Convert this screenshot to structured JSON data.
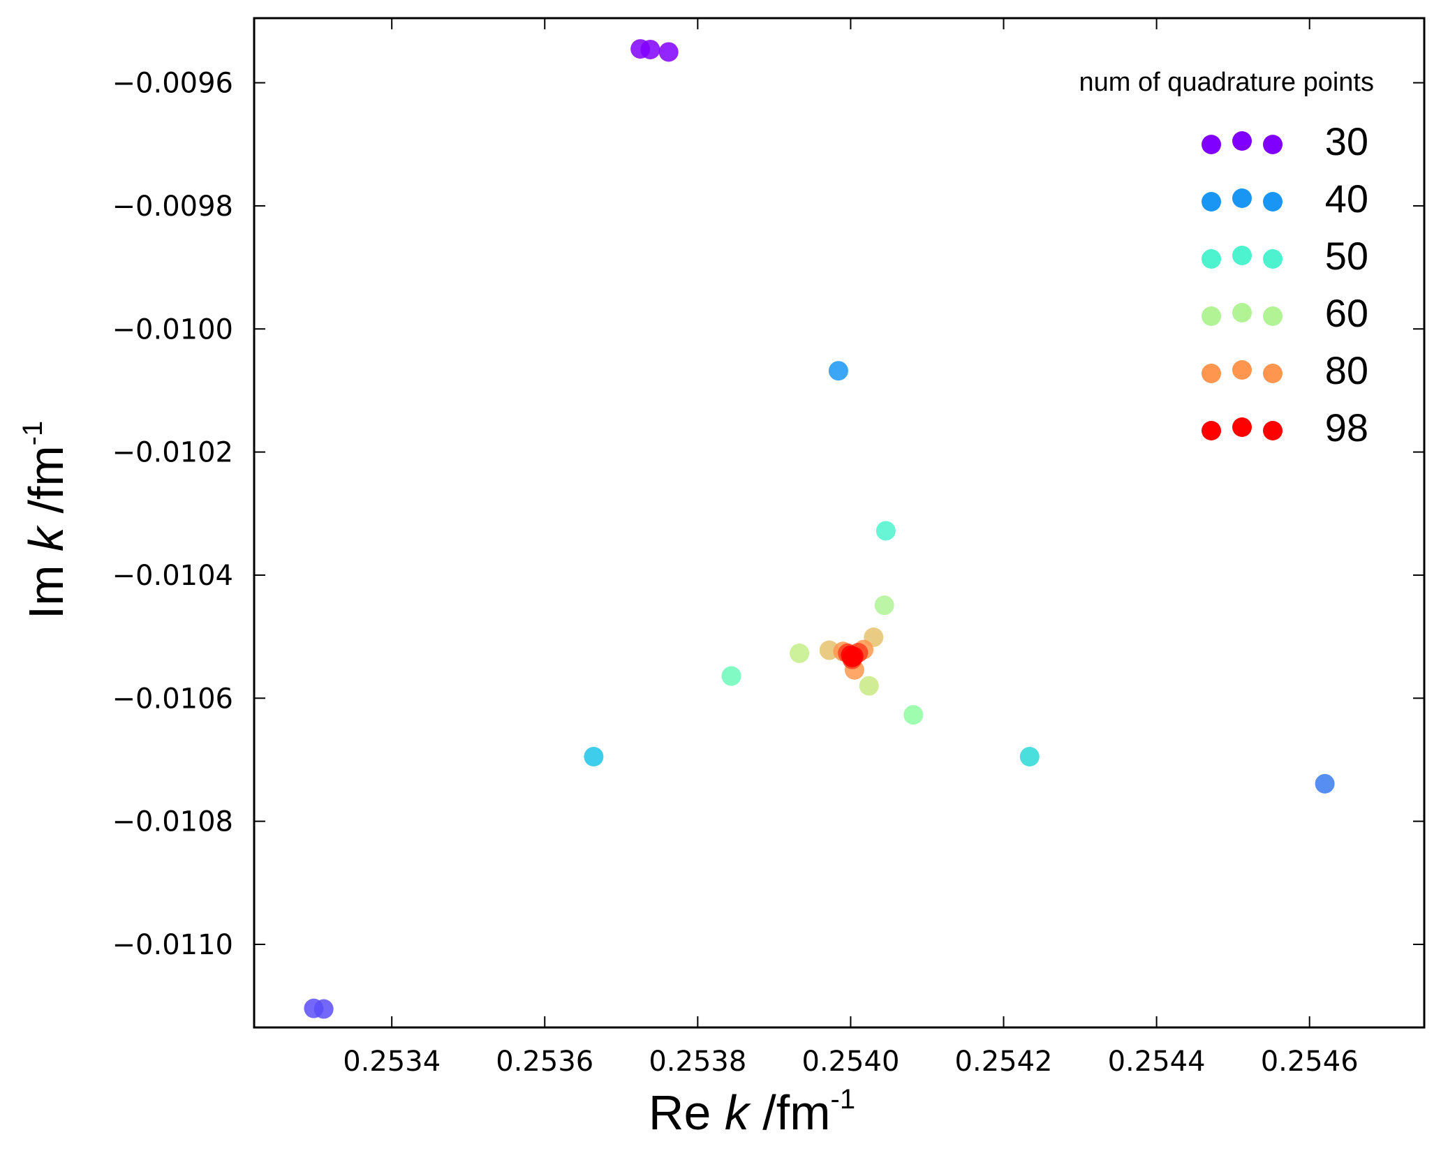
{
  "chart_data": {
    "type": "scatter",
    "xlabel": {
      "prefix": "Re ",
      "var": "k",
      "unit": " /fm",
      "sup": "-1"
    },
    "ylabel": {
      "prefix": "Im ",
      "var": "k",
      "unit": " /fm",
      "sup": "-1"
    },
    "xlim": [
      0.25322,
      0.25475
    ],
    "ylim": [
      -0.011135,
      -0.009495
    ],
    "xticks": [
      0.2534,
      0.2536,
      0.2538,
      0.254,
      0.2542,
      0.2544,
      0.2546
    ],
    "xtick_labels": [
      "0.2534",
      "0.2536",
      "0.2538",
      "0.2540",
      "0.2542",
      "0.2544",
      "0.2546"
    ],
    "yticks": [
      -0.0096,
      -0.0098,
      -0.01,
      -0.0102,
      -0.0104,
      -0.0106,
      -0.0108,
      -0.011
    ],
    "ytick_labels": [
      "−0.0096",
      "−0.0098",
      "−0.0100",
      "−0.0102",
      "−0.0104",
      "−0.0106",
      "−0.0108",
      "−0.0110"
    ],
    "grid": false,
    "legend": {
      "title": "num of quadrature points",
      "placement": "top-right",
      "entries": [
        {
          "label": "30",
          "color": "#8000ff"
        },
        {
          "label": "40",
          "color": "#1996f3"
        },
        {
          "label": "50",
          "color": "#4df3ce"
        },
        {
          "label": "60",
          "color": "#b2f396"
        },
        {
          "label": "80",
          "color": "#ff964f"
        },
        {
          "label": "98",
          "color": "#ff0000"
        }
      ]
    },
    "points": [
      {
        "x": 0.253725,
        "y": -0.009545,
        "color": "#8000ff"
      },
      {
        "x": 0.253738,
        "y": -0.009546,
        "color": "#8000ff"
      },
      {
        "x": 0.253762,
        "y": -0.00955,
        "color": "#8000ff"
      },
      {
        "x": 0.253298,
        "y": -0.011104,
        "color": "#5a4ef8"
      },
      {
        "x": 0.253311,
        "y": -0.011105,
        "color": "#5a4ef8"
      },
      {
        "x": 0.253984,
        "y": -0.010068,
        "color": "#1996f3"
      },
      {
        "x": 0.25462,
        "y": -0.010739,
        "color": "#3a7af0"
      },
      {
        "x": 0.253664,
        "y": -0.010695,
        "color": "#1cc4e6"
      },
      {
        "x": 0.254234,
        "y": -0.010695,
        "color": "#2ad9d6"
      },
      {
        "x": 0.254046,
        "y": -0.010328,
        "color": "#4df3ce"
      },
      {
        "x": 0.253844,
        "y": -0.010564,
        "color": "#6cf9b9"
      },
      {
        "x": 0.254082,
        "y": -0.010627,
        "color": "#8efda1"
      },
      {
        "x": 0.253933,
        "y": -0.010527,
        "color": "#c4ee88"
      },
      {
        "x": 0.254044,
        "y": -0.010449,
        "color": "#b2f396"
      },
      {
        "x": 0.254024,
        "y": -0.01058,
        "color": "#c8ea84"
      },
      {
        "x": 0.253972,
        "y": -0.010522,
        "color": "#e6c26e"
      },
      {
        "x": 0.25403,
        "y": -0.010501,
        "color": "#e6c26e"
      },
      {
        "x": 0.25399,
        "y": -0.010524,
        "color": "#ff964f"
      },
      {
        "x": 0.254017,
        "y": -0.010521,
        "color": "#ff964f"
      },
      {
        "x": 0.254005,
        "y": -0.010554,
        "color": "#ff964f"
      },
      {
        "x": 0.253996,
        "y": -0.010527,
        "color": "#ff4020"
      },
      {
        "x": 0.25401,
        "y": -0.010526,
        "color": "#ff4020"
      },
      {
        "x": 0.254002,
        "y": -0.010537,
        "color": "#ff4020"
      },
      {
        "x": 0.254,
        "y": -0.01053,
        "color": "#ff0000"
      },
      {
        "x": 0.254004,
        "y": -0.010532,
        "color": "#ff0000"
      },
      {
        "x": 0.254002,
        "y": -0.010534,
        "color": "#ff0000"
      }
    ]
  }
}
